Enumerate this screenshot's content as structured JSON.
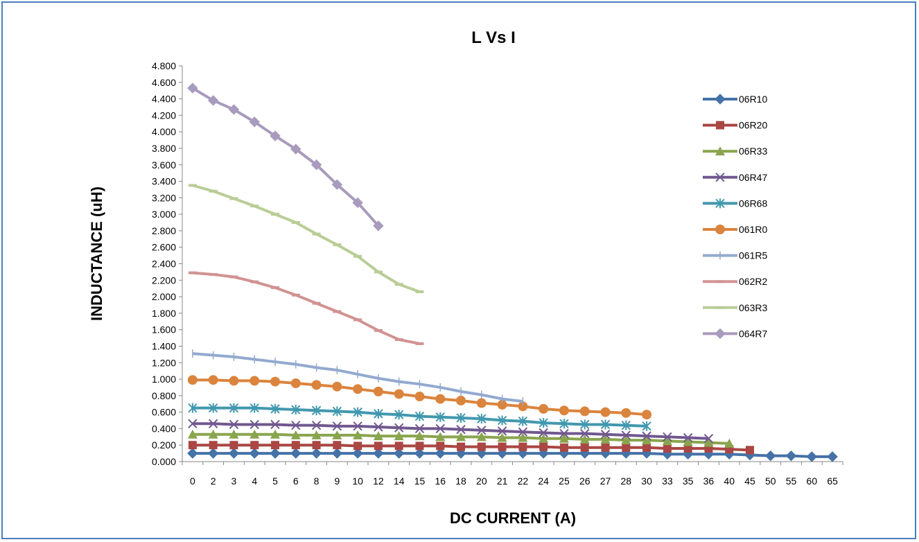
{
  "chart_data": {
    "type": "line",
    "title": "L Vs I",
    "xlabel": "DC CURRENT (A)",
    "ylabel": "INDUCTANCE (uH)",
    "categories": [
      "0",
      "2",
      "3",
      "4",
      "5",
      "6",
      "8",
      "9",
      "10",
      "12",
      "14",
      "15",
      "16",
      "18",
      "20",
      "21",
      "22",
      "24",
      "25",
      "26",
      "27",
      "28",
      "30",
      "33",
      "35",
      "36",
      "40",
      "45",
      "50",
      "55",
      "60",
      "65"
    ],
    "ylim": [
      0,
      4.8
    ],
    "ytick_step": 0.2,
    "ytick_decimals": 3,
    "grid": false,
    "legend_position": "right",
    "series": [
      {
        "name": "06R10",
        "color": "#4572a7",
        "marker": "diamond",
        "values": [
          0.1,
          0.1,
          0.1,
          0.1,
          0.1,
          0.1,
          0.1,
          0.1,
          0.1,
          0.1,
          0.1,
          0.1,
          0.1,
          0.1,
          0.1,
          0.1,
          0.1,
          0.1,
          0.1,
          0.1,
          0.1,
          0.1,
          0.1,
          0.09,
          0.09,
          0.09,
          0.09,
          0.08,
          0.07,
          0.07,
          0.06,
          0.06
        ]
      },
      {
        "name": "06R20",
        "color": "#aa4643",
        "marker": "square",
        "values": [
          0.2,
          0.2,
          0.2,
          0.2,
          0.2,
          0.2,
          0.2,
          0.2,
          0.19,
          0.19,
          0.19,
          0.19,
          0.19,
          0.18,
          0.18,
          0.18,
          0.18,
          0.18,
          0.17,
          0.17,
          0.17,
          0.17,
          0.17,
          0.16,
          0.16,
          0.16,
          0.15,
          0.14,
          null,
          null,
          null,
          null
        ]
      },
      {
        "name": "06R33",
        "color": "#89a54e",
        "marker": "triangle",
        "values": [
          0.33,
          0.33,
          0.33,
          0.33,
          0.33,
          0.32,
          0.32,
          0.32,
          0.32,
          0.31,
          0.31,
          0.31,
          0.3,
          0.3,
          0.3,
          0.29,
          0.29,
          0.28,
          0.28,
          0.27,
          0.27,
          0.26,
          0.26,
          0.25,
          0.24,
          0.23,
          0.22,
          null,
          null,
          null,
          null,
          null
        ]
      },
      {
        "name": "06R47",
        "color": "#71588f",
        "marker": "x",
        "values": [
          0.46,
          0.46,
          0.45,
          0.45,
          0.45,
          0.44,
          0.44,
          0.43,
          0.43,
          0.42,
          0.41,
          0.4,
          0.4,
          0.39,
          0.38,
          0.37,
          0.36,
          0.35,
          0.34,
          0.34,
          0.33,
          0.32,
          0.31,
          0.3,
          0.29,
          0.28,
          null,
          null,
          null,
          null,
          null,
          null
        ]
      },
      {
        "name": "06R68",
        "color": "#4198af",
        "marker": "star",
        "values": [
          0.65,
          0.65,
          0.65,
          0.65,
          0.64,
          0.63,
          0.62,
          0.61,
          0.6,
          0.58,
          0.57,
          0.55,
          0.54,
          0.53,
          0.52,
          0.5,
          0.49,
          0.47,
          0.46,
          0.45,
          0.45,
          0.44,
          0.43,
          null,
          null,
          null,
          null,
          null,
          null,
          null,
          null,
          null
        ]
      },
      {
        "name": "061R0",
        "color": "#db843d",
        "marker": "circle",
        "values": [
          0.99,
          0.99,
          0.98,
          0.98,
          0.97,
          0.95,
          0.93,
          0.91,
          0.88,
          0.85,
          0.82,
          0.79,
          0.76,
          0.74,
          0.71,
          0.69,
          0.67,
          0.64,
          0.62,
          0.61,
          0.6,
          0.59,
          0.57,
          null,
          null,
          null,
          null,
          null,
          null,
          null,
          null,
          null
        ]
      },
      {
        "name": "061R5",
        "color": "#93a9cf",
        "marker": "plus",
        "values": [
          1.31,
          1.29,
          1.27,
          1.24,
          1.21,
          1.18,
          1.14,
          1.11,
          1.06,
          1.01,
          0.97,
          0.94,
          0.9,
          0.85,
          0.81,
          0.76,
          0.73,
          null,
          null,
          null,
          null,
          null,
          null,
          null,
          null,
          null,
          null,
          null,
          null,
          null,
          null,
          null
        ]
      },
      {
        "name": "062R2",
        "color": "#d19392",
        "marker": "dash",
        "values": [
          2.29,
          2.27,
          2.24,
          2.18,
          2.11,
          2.02,
          1.92,
          1.82,
          1.72,
          1.59,
          1.48,
          1.43,
          null,
          null,
          null,
          null,
          null,
          null,
          null,
          null,
          null,
          null,
          null,
          null,
          null,
          null,
          null,
          null,
          null,
          null,
          null,
          null
        ]
      },
      {
        "name": "063R3",
        "color": "#b9cd96",
        "marker": "dash",
        "values": [
          3.35,
          3.28,
          3.19,
          3.1,
          3.0,
          2.9,
          2.76,
          2.63,
          2.49,
          2.3,
          2.15,
          2.06,
          null,
          null,
          null,
          null,
          null,
          null,
          null,
          null,
          null,
          null,
          null,
          null,
          null,
          null,
          null,
          null,
          null,
          null,
          null,
          null
        ]
      },
      {
        "name": "064R7",
        "color": "#a99bbd",
        "marker": "diamond",
        "values": [
          4.53,
          4.38,
          4.27,
          4.12,
          3.95,
          3.79,
          3.6,
          3.36,
          3.14,
          2.86,
          null,
          null,
          null,
          null,
          null,
          null,
          null,
          null,
          null,
          null,
          null,
          null,
          null,
          null,
          null,
          null,
          null,
          null,
          null,
          null,
          null,
          null
        ]
      }
    ]
  }
}
